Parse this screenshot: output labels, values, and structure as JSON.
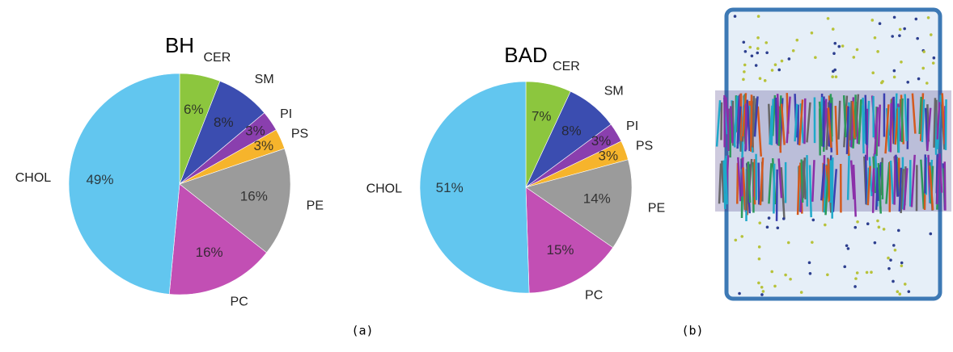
{
  "chart_data": [
    {
      "type": "pie",
      "title": "BH",
      "categories": [
        "CER",
        "SM",
        "PI",
        "PS",
        "PE",
        "PC",
        "CHOL"
      ],
      "values": [
        6,
        8,
        3,
        3,
        16,
        16,
        49
      ],
      "value_labels": [
        "6%",
        "8%",
        "3%",
        "3%",
        "16%",
        "16%",
        "49%"
      ],
      "colors": [
        "#8cc63e",
        "#3b4db0",
        "#8a3fae",
        "#f6b42c",
        "#9b9b9b",
        "#c24fb4",
        "#62c6ef"
      ]
    },
    {
      "type": "pie",
      "title": "BAD",
      "categories": [
        "CER",
        "SM",
        "PI",
        "PS",
        "PE",
        "PC",
        "CHOL"
      ],
      "values": [
        7,
        8,
        3,
        3,
        14,
        15,
        51
      ],
      "value_labels": [
        "7%",
        "8%",
        "3%",
        "3%",
        "14%",
        "15%",
        "51%"
      ],
      "colors": [
        "#8cc63e",
        "#3b4db0",
        "#8a3fae",
        "#f6b42c",
        "#9b9b9b",
        "#c24fb4",
        "#62c6ef"
      ]
    }
  ],
  "captions": [
    "(a)",
    "(b)"
  ]
}
